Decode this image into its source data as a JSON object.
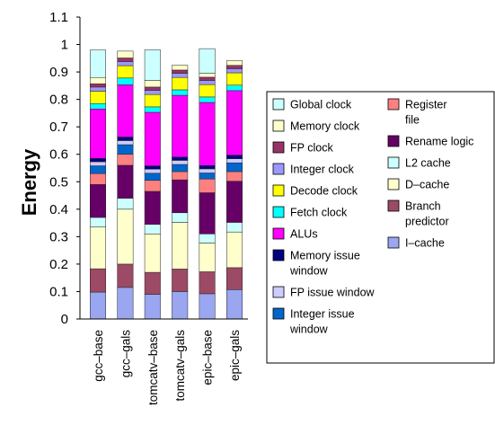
{
  "chart_data": {
    "type": "bar",
    "stacked": true,
    "title": "",
    "xlabel": "",
    "ylabel": "Energy",
    "ylim": [
      0,
      1.1
    ],
    "yticks": [
      "0",
      "0.1",
      "0.2",
      "0.3",
      "0.4",
      "0.5",
      "0.6",
      "0.7",
      "0.8",
      "0.9",
      "1",
      "1.1"
    ],
    "grid": false,
    "legend_position": "right",
    "categories": [
      "gcc–base",
      "gcc–gals",
      "tomcatv–base",
      "tomcatv–gals",
      "epic–base",
      "epic–gals"
    ],
    "series": [
      {
        "name": "I–cache",
        "color": "#9aa6f0",
        "values": [
          0.098,
          0.115,
          0.09,
          0.1,
          0.092,
          0.107
        ]
      },
      {
        "name": "Branch predictor",
        "color": "#9c4a66",
        "values": [
          0.085,
          0.085,
          0.08,
          0.082,
          0.08,
          0.08
        ]
      },
      {
        "name": "D–cache",
        "color": "#ffffcc",
        "values": [
          0.152,
          0.2,
          0.14,
          0.17,
          0.105,
          0.13
        ]
      },
      {
        "name": "L2 cache",
        "color": "#ccffff",
        "values": [
          0.035,
          0.04,
          0.035,
          0.035,
          0.033,
          0.035
        ]
      },
      {
        "name": "Rename logic",
        "color": "#660066",
        "values": [
          0.12,
          0.12,
          0.12,
          0.12,
          0.15,
          0.15
        ]
      },
      {
        "name": "Register file",
        "color": "#ff8080",
        "values": [
          0.04,
          0.04,
          0.04,
          0.03,
          0.05,
          0.035
        ]
      },
      {
        "name": "Integer issue window",
        "color": "#0066cc",
        "values": [
          0.028,
          0.035,
          0.026,
          0.026,
          0.022,
          0.032
        ]
      },
      {
        "name": "FP issue window",
        "color": "#ccccff",
        "values": [
          0.015,
          0.015,
          0.015,
          0.015,
          0.015,
          0.015
        ]
      },
      {
        "name": "Memory issue window",
        "color": "#000080",
        "values": [
          0.012,
          0.013,
          0.012,
          0.012,
          0.012,
          0.013
        ]
      },
      {
        "name": "ALUs",
        "color": "#ff00ff",
        "values": [
          0.18,
          0.19,
          0.195,
          0.225,
          0.23,
          0.235
        ]
      },
      {
        "name": "Fetch clock",
        "color": "#00ffff",
        "values": [
          0.02,
          0.025,
          0.02,
          0.02,
          0.02,
          0.02
        ]
      },
      {
        "name": "Decode clock",
        "color": "#ffff00",
        "values": [
          0.045,
          0.045,
          0.045,
          0.045,
          0.045,
          0.045
        ]
      },
      {
        "name": "Integer clock",
        "color": "#9999ff",
        "values": [
          0.015,
          0.015,
          0.015,
          0.015,
          0.015,
          0.015
        ]
      },
      {
        "name": "FP clock",
        "color": "#993366",
        "values": [
          0.012,
          0.013,
          0.012,
          0.012,
          0.012,
          0.012
        ]
      },
      {
        "name": "Memory clock",
        "color": "#ffffcc",
        "values": [
          0.023,
          0.025,
          0.024,
          0.018,
          0.014,
          0.017
        ]
      },
      {
        "name": "Global clock",
        "color": "#ccffff",
        "values": [
          0.1,
          0.0,
          0.112,
          0.0,
          0.09,
          0.0
        ]
      }
    ],
    "legend_columns": [
      [
        "Global clock",
        "Memory clock",
        "FP clock",
        "Integer clock",
        "Decode clock",
        "Fetch clock",
        "ALUs",
        "Memory issue window",
        "FP issue window",
        "Integer issue window"
      ],
      [
        "Register file",
        "Rename logic",
        "L2 cache",
        "D–cache",
        "Branch predictor",
        "I–cache"
      ]
    ]
  }
}
